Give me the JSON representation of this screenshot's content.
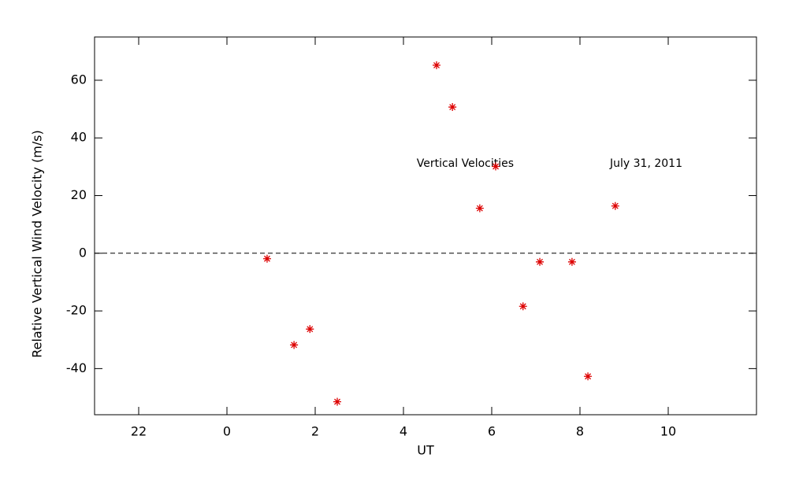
{
  "chart_data": {
    "type": "scatter",
    "xlabel": "UT",
    "ylabel": "Relative Vertical Wind Velocity (m/s)",
    "annotations": [
      {
        "text": "Vertical Velocities",
        "x": 5.4,
        "y": 31
      },
      {
        "text": "July 31, 2011",
        "x": 9.5,
        "y": 31
      }
    ],
    "series": [
      {
        "name": "Vertical Velocities",
        "color": "#dd0000",
        "marker": "asterisk",
        "x": [
          0.91,
          1.52,
          1.88,
          2.5,
          4.75,
          5.11,
          5.73,
          6.09,
          6.71,
          7.09,
          7.82,
          8.18,
          8.8
        ],
        "values": [
          -1.9,
          -31.8,
          -26.3,
          -51.5,
          65.2,
          50.7,
          15.6,
          30.1,
          -18.4,
          -3.0,
          -3.0,
          -42.7,
          16.4
        ]
      }
    ],
    "xlim": [
      -3,
      12
    ],
    "ylim": [
      -56,
      75
    ],
    "xticks": [
      {
        "value": -2,
        "label": "22"
      },
      0,
      2,
      4,
      6,
      8,
      10
    ],
    "yticks": [
      -40,
      -20,
      0,
      20,
      40,
      60
    ],
    "reference_line": {
      "y": 0,
      "style": "dashed"
    }
  }
}
